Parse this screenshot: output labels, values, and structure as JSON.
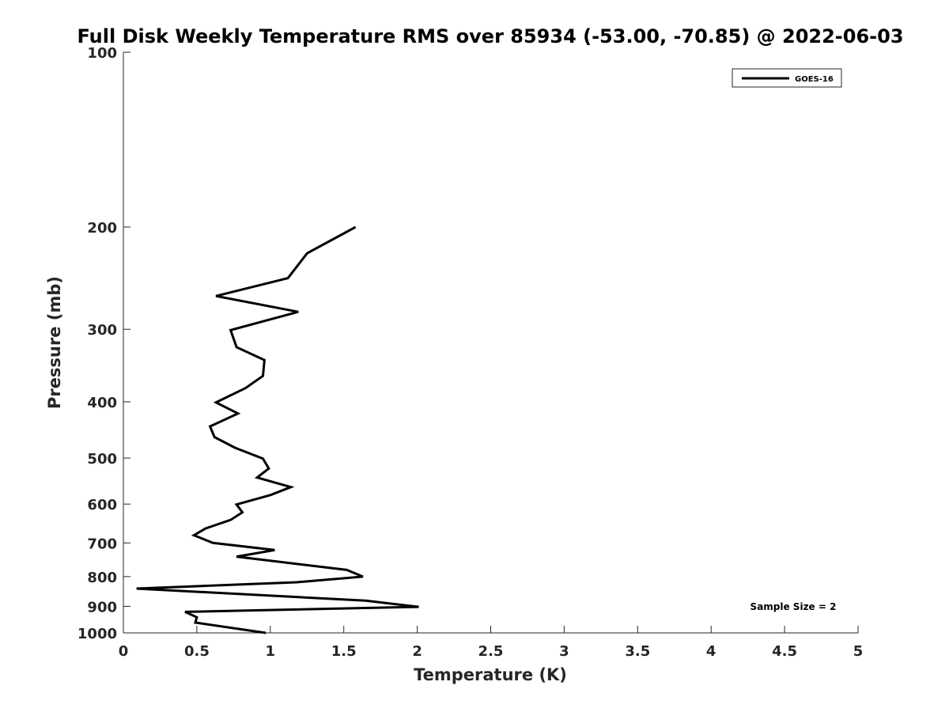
{
  "chart_data": {
    "type": "line",
    "title": "Full Disk Weekly Temperature RMS over 85934 (-53.00, -70.85) @ 2022-06-03",
    "xlabel": "Temperature (K)",
    "ylabel": "Pressure (mb)",
    "xlim": [
      0,
      5
    ],
    "ylim": [
      100,
      1000
    ],
    "y_scale": "log",
    "y_reversed": true,
    "x_ticks": [
      0,
      0.5,
      1,
      1.5,
      2,
      2.5,
      3,
      3.5,
      4,
      4.5,
      5
    ],
    "x_tick_labels": [
      "0",
      "0.5",
      "1",
      "1.5",
      "2",
      "2.5",
      "3",
      "3.5",
      "4",
      "4.5",
      "5"
    ],
    "y_ticks": [
      100,
      200,
      300,
      400,
      500,
      600,
      700,
      800,
      900,
      1000
    ],
    "y_tick_labels": [
      "100",
      "200",
      "300",
      "400",
      "500",
      "600",
      "700",
      "800",
      "900",
      "1000"
    ],
    "grid": false,
    "legend_position": "top-right",
    "series": [
      {
        "name": "GOES-16",
        "color": "#000000",
        "points": [
          {
            "x": 1.58,
            "y": 200
          },
          {
            "x": 1.25,
            "y": 222
          },
          {
            "x": 1.12,
            "y": 245
          },
          {
            "x": 0.63,
            "y": 263
          },
          {
            "x": 1.19,
            "y": 280
          },
          {
            "x": 0.73,
            "y": 301
          },
          {
            "x": 0.77,
            "y": 322
          },
          {
            "x": 0.96,
            "y": 339
          },
          {
            "x": 0.95,
            "y": 361
          },
          {
            "x": 0.83,
            "y": 379
          },
          {
            "x": 0.63,
            "y": 401
          },
          {
            "x": 0.78,
            "y": 419
          },
          {
            "x": 0.59,
            "y": 441
          },
          {
            "x": 0.62,
            "y": 460
          },
          {
            "x": 0.76,
            "y": 480
          },
          {
            "x": 0.95,
            "y": 501
          },
          {
            "x": 0.99,
            "y": 521
          },
          {
            "x": 0.91,
            "y": 540
          },
          {
            "x": 1.14,
            "y": 561
          },
          {
            "x": 1.0,
            "y": 579
          },
          {
            "x": 0.77,
            "y": 601
          },
          {
            "x": 0.81,
            "y": 620
          },
          {
            "x": 0.73,
            "y": 639
          },
          {
            "x": 0.56,
            "y": 661
          },
          {
            "x": 0.48,
            "y": 679
          },
          {
            "x": 0.61,
            "y": 700
          },
          {
            "x": 1.03,
            "y": 720
          },
          {
            "x": 0.77,
            "y": 739
          },
          {
            "x": 1.52,
            "y": 779
          },
          {
            "x": 1.63,
            "y": 800
          },
          {
            "x": 1.18,
            "y": 818
          },
          {
            "x": 0.09,
            "y": 839
          },
          {
            "x": 1.65,
            "y": 880
          },
          {
            "x": 2.01,
            "y": 902
          },
          {
            "x": 0.42,
            "y": 920
          },
          {
            "x": 0.5,
            "y": 940
          },
          {
            "x": 0.49,
            "y": 960
          },
          {
            "x": 0.97,
            "y": 1000
          }
        ]
      }
    ],
    "annotations": [
      "Sample Size = 2"
    ]
  }
}
